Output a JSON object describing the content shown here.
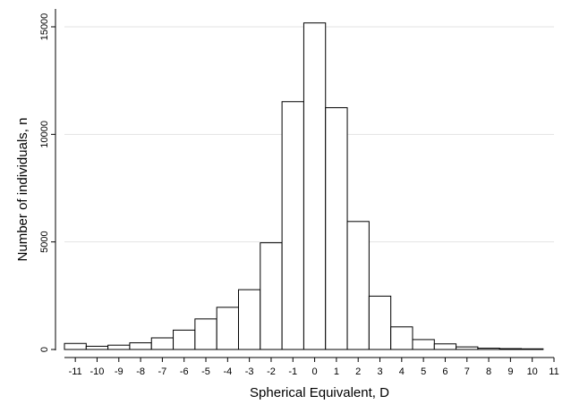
{
  "chart_data": {
    "type": "bar",
    "title": "",
    "xlabel": "Spherical Equivalent, D",
    "ylabel": "Number of individuals, n",
    "grid": true,
    "ylim": [
      0,
      15000
    ],
    "xlim": [
      -11.5,
      11
    ],
    "bin_width": 1,
    "x_ticks": [
      -11,
      -10,
      -9,
      -8,
      -7,
      -6,
      -5,
      -4,
      -3,
      -2,
      -1,
      0,
      1,
      2,
      3,
      4,
      5,
      6,
      7,
      8,
      9,
      10,
      11
    ],
    "x_tick_labels": [
      "-11",
      "-10",
      "-9",
      "-8",
      "-7",
      "-6",
      "-5",
      "-4",
      "-3",
      "-2",
      "-1",
      "0",
      "1",
      "2",
      "3",
      "4",
      "5",
      "6",
      "7",
      "8",
      "9",
      "10",
      "11"
    ],
    "y_ticks": [
      0,
      5000,
      10000,
      15000
    ],
    "y_tick_labels": [
      "0",
      "5000",
      "10000",
      "15000"
    ],
    "bins": [
      {
        "from": -11.5,
        "to": -10.5,
        "value": 280
      },
      {
        "from": -10.5,
        "to": -9.5,
        "value": 150
      },
      {
        "from": -9.5,
        "to": -8.5,
        "value": 200
      },
      {
        "from": -8.5,
        "to": -7.5,
        "value": 310
      },
      {
        "from": -7.5,
        "to": -6.5,
        "value": 540
      },
      {
        "from": -6.5,
        "to": -5.5,
        "value": 900
      },
      {
        "from": -5.5,
        "to": -4.5,
        "value": 1420
      },
      {
        "from": -4.5,
        "to": -3.5,
        "value": 1960
      },
      {
        "from": -3.5,
        "to": -2.5,
        "value": 2780
      },
      {
        "from": -2.5,
        "to": -1.5,
        "value": 4960
      },
      {
        "from": -1.5,
        "to": -0.5,
        "value": 11520
      },
      {
        "from": -0.5,
        "to": 0.5,
        "value": 15180
      },
      {
        "from": 0.5,
        "to": 1.5,
        "value": 11240
      },
      {
        "from": 1.5,
        "to": 2.5,
        "value": 5950
      },
      {
        "from": 2.5,
        "to": 3.5,
        "value": 2480
      },
      {
        "from": 3.5,
        "to": 4.5,
        "value": 1050
      },
      {
        "from": 4.5,
        "to": 5.5,
        "value": 460
      },
      {
        "from": 5.5,
        "to": 6.5,
        "value": 260
      },
      {
        "from": 6.5,
        "to": 7.5,
        "value": 120
      },
      {
        "from": 7.5,
        "to": 8.5,
        "value": 60
      },
      {
        "from": 8.5,
        "to": 9.5,
        "value": 40
      },
      {
        "from": 9.5,
        "to": 10.5,
        "value": 30
      }
    ]
  }
}
